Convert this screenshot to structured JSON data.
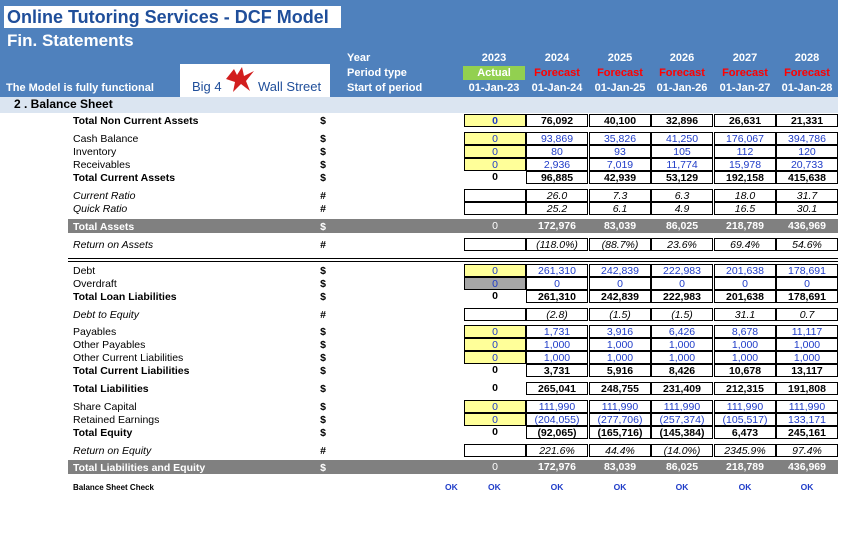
{
  "header": {
    "title": "Online Tutoring Services - DCF Model",
    "subtitle": "Fin. Statements",
    "functional_note": "The Model is fully functional",
    "logo_left": "Big 4",
    "logo_right": "Wall Street",
    "row_labels": [
      "Year",
      "Period type",
      "Start of period"
    ],
    "years": [
      "2023",
      "2024",
      "2025",
      "2026",
      "2027",
      "2028"
    ],
    "period_types": [
      "Actual",
      "Forecast",
      "Forecast",
      "Forecast",
      "Forecast",
      "Forecast"
    ],
    "start_dates": [
      "01-Jan-23",
      "01-Jan-24",
      "01-Jan-25",
      "01-Jan-26",
      "01-Jan-27",
      "01-Jan-28"
    ]
  },
  "section_title": "2 .  Balance Sheet",
  "rows": [
    {
      "label": "Total Non Current Assets",
      "unit": "$",
      "bold": true,
      "actual": "0",
      "values": [
        "76,092",
        "40,100",
        "32,896",
        "26,631",
        "21,331"
      ]
    },
    {
      "label": "Cash Balance",
      "unit": "$",
      "actual": "0",
      "values": [
        "93,869",
        "35,826",
        "41,250",
        "176,067",
        "394,786"
      ]
    },
    {
      "label": "Inventory",
      "unit": "$",
      "actual": "0",
      "values": [
        "80",
        "93",
        "105",
        "112",
        "120"
      ]
    },
    {
      "label": "Receivables",
      "unit": "$",
      "actual": "0",
      "values": [
        "2,936",
        "7,019",
        "11,774",
        "15,978",
        "20,733"
      ]
    },
    {
      "label": "Total Current Assets",
      "unit": "$",
      "bold": true,
      "actual": "0",
      "values": [
        "96,885",
        "42,939",
        "53,129",
        "192,158",
        "415,638"
      ]
    },
    {
      "label": "Current Ratio",
      "unit": "#",
      "italic": true,
      "actual": "",
      "values": [
        "26.0",
        "7.3",
        "6.3",
        "18.0",
        "31.7"
      ]
    },
    {
      "label": "Quick Ratio",
      "unit": "#",
      "italic": true,
      "actual": "",
      "values": [
        "25.2",
        "6.1",
        "4.9",
        "16.5",
        "30.1"
      ]
    },
    {
      "label": "Total Assets",
      "unit": "$",
      "bold": true,
      "actual": "0",
      "values": [
        "172,976",
        "83,039",
        "86,025",
        "218,789",
        "436,969"
      ]
    },
    {
      "label": "Return on Assets",
      "unit": "#",
      "italic": true,
      "actual": "",
      "values": [
        "(118.0%)",
        "(88.7%)",
        "23.6%",
        "69.4%",
        "54.6%"
      ]
    },
    {
      "label": "Debt",
      "unit": "$",
      "actual": "0",
      "values": [
        "261,310",
        "242,839",
        "222,983",
        "201,638",
        "178,691"
      ]
    },
    {
      "label": "Overdraft",
      "unit": "$",
      "actual": "0",
      "values": [
        "0",
        "0",
        "0",
        "0",
        "0"
      ]
    },
    {
      "label": "Total Loan Liabilities",
      "unit": "$",
      "bold": true,
      "actual": "0",
      "values": [
        "261,310",
        "242,839",
        "222,983",
        "201,638",
        "178,691"
      ]
    },
    {
      "label": "Debt to Equity",
      "unit": "#",
      "italic": true,
      "actual": "",
      "values": [
        "(2.8)",
        "(1.5)",
        "(1.5)",
        "31.1",
        "0.7"
      ]
    },
    {
      "label": "Payables",
      "unit": "$",
      "actual": "0",
      "values": [
        "1,731",
        "3,916",
        "6,426",
        "8,678",
        "11,117"
      ]
    },
    {
      "label": "Other  Payables",
      "unit": "$",
      "actual": "0",
      "values": [
        "1,000",
        "1,000",
        "1,000",
        "1,000",
        "1,000"
      ]
    },
    {
      "label": "Other Current Liabilities",
      "unit": "$",
      "actual": "0",
      "values": [
        "1,000",
        "1,000",
        "1,000",
        "1,000",
        "1,000"
      ]
    },
    {
      "label": "Total Current Liabilities",
      "unit": "$",
      "bold": true,
      "actual": "0",
      "values": [
        "3,731",
        "5,916",
        "8,426",
        "10,678",
        "13,117"
      ]
    },
    {
      "label": "Total Liabilities",
      "unit": "$",
      "bold": true,
      "actual": "0",
      "values": [
        "265,041",
        "248,755",
        "231,409",
        "212,315",
        "191,808"
      ]
    },
    {
      "label": "Share Capital",
      "unit": "$",
      "actual": "0",
      "values": [
        "111,990",
        "111,990",
        "111,990",
        "111,990",
        "111,990"
      ]
    },
    {
      "label": "Retained Earnings",
      "unit": "$",
      "actual": "0",
      "values": [
        "(204,055)",
        "(277,706)",
        "(257,374)",
        "(105,517)",
        "133,171"
      ]
    },
    {
      "label": "Total Equity",
      "unit": "$",
      "bold": true,
      "actual": "0",
      "values": [
        "(92,065)",
        "(165,716)",
        "(145,384)",
        "6,473",
        "245,161"
      ]
    },
    {
      "label": "Return on Equity",
      "unit": "#",
      "italic": true,
      "actual": "",
      "values": [
        "221.6%",
        "44.4%",
        "(14.0%)",
        "2345.9%",
        "97.4%"
      ]
    },
    {
      "label": "Total Liabilities and Equity",
      "unit": "$",
      "bold": true,
      "actual": "0",
      "values": [
        "172,976",
        "83,039",
        "86,025",
        "218,789",
        "436,969"
      ]
    }
  ],
  "check": {
    "label": "Balance Sheet Check",
    "overall": "OK",
    "actual": "OK",
    "values": [
      "OK",
      "OK",
      "OK",
      "OK",
      "OK"
    ]
  },
  "colors": {
    "header_blue": "#4f81bd",
    "actual_green": "#92d050",
    "forecast_red": "#ff0000",
    "input_yellow": "#ffff99",
    "input_blue_text": "#1f3cc8",
    "total_band_gray": "#808080"
  }
}
